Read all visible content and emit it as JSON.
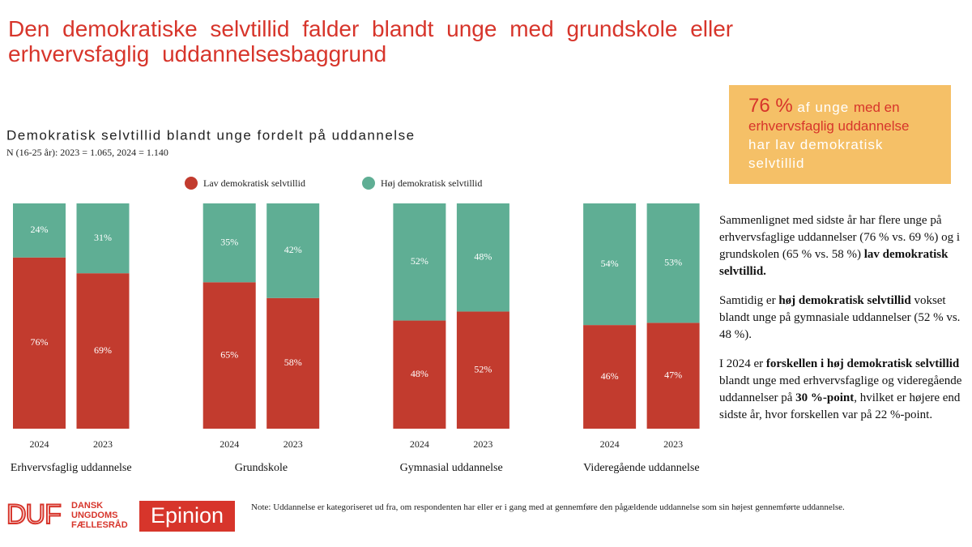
{
  "title": "Den demokratiske selvtillid falder blandt unge med grundskole eller erhvervsfaglig uddannelsesbaggrund",
  "chart_data": {
    "type": "bar",
    "stacked": true,
    "title": "Demokratisk selvtillid blandt unge fordelt på uddannelse",
    "subtitle": "N (16-25 år): 2023 = 1.065, 2024 = 1.140",
    "categories": [
      "2024",
      "2023",
      "2024",
      "2023",
      "2024",
      "2023",
      "2024",
      "2023"
    ],
    "groups": [
      "Erhvervsfaglig uddannelse",
      "Grundskole",
      "Gymnasial uddannelse",
      "Videregående uddannelse"
    ],
    "ylim": [
      0,
      100
    ],
    "series": [
      {
        "name": "Lav demokratisk selvtillid",
        "color": "#c23b2e",
        "values": [
          76,
          69,
          65,
          58,
          48,
          52,
          46,
          47
        ],
        "value_labels": [
          "76%",
          "69%",
          "65%",
          "58%",
          "48%",
          "52%",
          "46%",
          "47%"
        ]
      },
      {
        "name": "Høj demokratisk selvtillid",
        "color": "#5fae94",
        "values": [
          24,
          31,
          35,
          42,
          52,
          48,
          54,
          53
        ],
        "value_labels": [
          "24%",
          "31%",
          "35%",
          "42%",
          "52%",
          "48%",
          "54%",
          "53%"
        ]
      }
    ],
    "legend": "top"
  },
  "callout": [
    {
      "text": "76 %",
      "highlight": true
    },
    {
      "text": " af unge ",
      "highlight": false
    },
    {
      "text": "med en erhvervsfaglig uddannelse",
      "highlight": true
    },
    {
      "text": " har lav demokratisk selvtillid",
      "highlight": false
    }
  ],
  "paragraphs": [
    [
      {
        "text": "Sammenlignet med sidste år har flere unge på erhvervsfaglige uddannelser (76 % vs. 69 %) og i grundskolen (65 % vs. 58 %) ",
        "bold": false
      },
      {
        "text": "lav demokratisk selvtillid.",
        "bold": true
      }
    ],
    [
      {
        "text": "Samtidig er ",
        "bold": false
      },
      {
        "text": "høj demokratisk selvtillid",
        "bold": true
      },
      {
        "text": " vokset blandt unge på gymnasiale uddannelser (52 % vs. 48 %).",
        "bold": false
      }
    ],
    [
      {
        "text": "I 2024 er ",
        "bold": false
      },
      {
        "text": "forskellen i høj demokratisk selvtillid",
        "bold": true
      },
      {
        "text": " blandt unge med erhvervsfaglige og videregående uddannelser på ",
        "bold": false
      },
      {
        "text": "30 %-point",
        "bold": true
      },
      {
        "text": ", hvilket er højere end sidste år, hvor forskellen var på 22 %-point.",
        "bold": false
      }
    ]
  ],
  "logos": {
    "duf_mark": "DUF",
    "duf_name": [
      "DANSK",
      "UNGDOMS",
      "FÆLLESRÅD"
    ],
    "epinion": "Epinion"
  },
  "note": "Note: Uddannelse er kategoriseret ud fra, om respondenten har eller er i gang med at gennemføre den pågældende uddannelse som sin højest gennemførte uddannelse."
}
